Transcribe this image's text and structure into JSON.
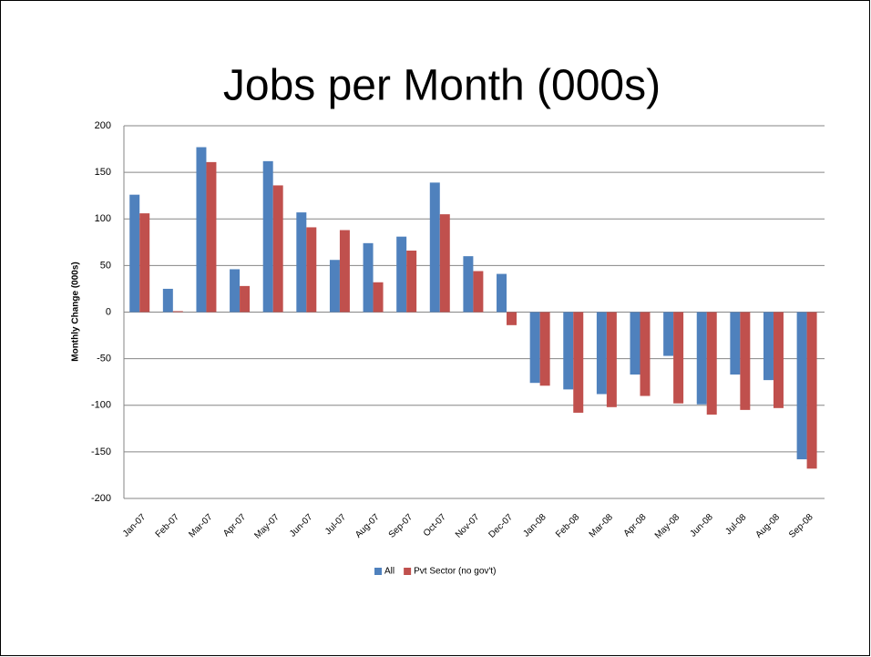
{
  "chart_data": {
    "type": "bar",
    "title": "Jobs per Month (000s)",
    "y_label": "Monthly Change (000s)",
    "categories": [
      "Jan-07",
      "Feb-07",
      "Mar-07",
      "Apr-07",
      "May-07",
      "Jun-07",
      "Jul-07",
      "Aug-07",
      "Sep-07",
      "Oct-07",
      "Nov-07",
      "Dec-07",
      "Jan-08",
      "Feb-08",
      "Mar-08",
      "Apr-08",
      "May-08",
      "Jun-08",
      "Jul-08",
      "Aug-08",
      "Sep-08"
    ],
    "series": [
      {
        "name": "All",
        "color": "#4f81bd",
        "values": [
          126,
          25,
          177,
          46,
          162,
          107,
          56,
          74,
          81,
          139,
          60,
          41,
          -76,
          -83,
          -88,
          -67,
          -47,
          -99,
          -67,
          -73,
          -158
        ]
      },
      {
        "name": "Pvt Sector (no gov't)",
        "color": "#c0504d",
        "values": [
          106,
          1,
          161,
          28,
          136,
          91,
          88,
          32,
          66,
          105,
          44,
          -14,
          -79,
          -108,
          -102,
          -90,
          -98,
          -110,
          -105,
          -103,
          -168
        ]
      }
    ],
    "ylim": [
      -200,
      200
    ],
    "yticks": [
      -200,
      -150,
      -100,
      -50,
      0,
      50,
      100,
      150,
      200
    ],
    "grid": true,
    "legend": "bottom"
  }
}
